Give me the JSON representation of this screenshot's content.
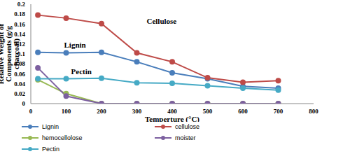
{
  "chart_data": {
    "type": "line",
    "x_label": "Temperture (°C)",
    "y_label": "Relative Weight of Components (g/g charcoal)",
    "x": [
      20,
      100,
      200,
      300,
      400,
      500,
      600,
      700
    ],
    "series": [
      {
        "name": "Lignin",
        "color": "#4a7ebb",
        "marker": "circle",
        "values": [
          0.103,
          0.102,
          0.103,
          0.084,
          0.062,
          0.05,
          0.035,
          0.031
        ]
      },
      {
        "name": "cellulose",
        "color": "#be4b48",
        "marker": "circle",
        "values": [
          0.178,
          0.172,
          0.161,
          0.102,
          0.084,
          0.052,
          0.043,
          0.046
        ]
      },
      {
        "name": "hemocellolose",
        "color": "#98b954",
        "marker": "circle",
        "values": [
          0.048,
          0.02,
          0,
          0,
          0,
          0,
          0,
          0
        ]
      },
      {
        "name": "moister",
        "color": "#7d60a0",
        "marker": "circle",
        "values": [
          0.072,
          0.015,
          0,
          0,
          0,
          0,
          0,
          0
        ]
      },
      {
        "name": "Pectin",
        "color": "#46aac5",
        "marker": "circle",
        "values": [
          0.05,
          0.05,
          0.051,
          0.042,
          0.041,
          0.036,
          0.031,
          0.027
        ]
      }
    ],
    "xlim": [
      0,
      800
    ],
    "xticks": [
      0,
      100,
      200,
      300,
      400,
      500,
      600,
      700,
      800
    ],
    "ylim": [
      0,
      0.2
    ],
    "yticks": [
      0,
      0.02,
      0.04,
      0.06,
      0.08,
      0.1,
      0.12,
      0.14,
      0.16,
      0.18,
      0.2
    ],
    "grid": false,
    "legend": "bottom",
    "annotations": [
      {
        "text": "Cellulose",
        "x": 370,
        "y": 0.166
      },
      {
        "text": "Lignin",
        "x": 125,
        "y": 0.118
      },
      {
        "text": "Pectin",
        "x": 143,
        "y": 0.064
      }
    ]
  }
}
